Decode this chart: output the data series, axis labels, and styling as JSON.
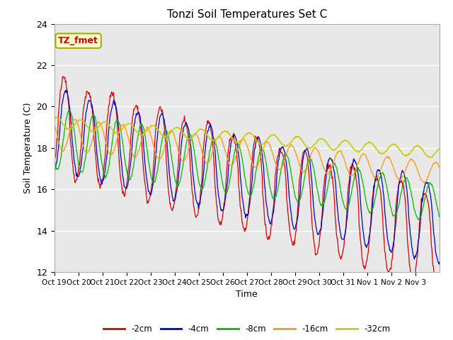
{
  "title": "Tonzi Soil Temperatures Set C",
  "xlabel": "Time",
  "ylabel": "Soil Temperature (C)",
  "ylim": [
    12,
    24
  ],
  "yticks": [
    12,
    14,
    16,
    18,
    20,
    22,
    24
  ],
  "xtick_labels": [
    "Oct 19",
    "Oct 20",
    "Oct 21",
    "Oct 22",
    "Oct 23",
    "Oct 24",
    "Oct 25",
    "Oct 26",
    "Oct 27",
    "Oct 28",
    "Oct 29",
    "Oct 30",
    "Oct 31",
    "Nov 1",
    "Nov 2",
    "Nov 3"
  ],
  "annotation_text": "TZ_fmet",
  "annotation_color": "#cc0000",
  "annotation_bg": "#ffffcc",
  "annotation_border": "#aaaa00",
  "colors": {
    "-2cm": "#dd0000",
    "-4cm": "#0000cc",
    "-8cm": "#00bb00",
    "-16cm": "#ff9900",
    "-32cm": "#cccc00"
  },
  "legend_entries": [
    "-2cm",
    "-4cm",
    "-8cm",
    "-16cm",
    "-32cm"
  ],
  "background_color": "#e8e8e8",
  "grid_color": "white",
  "title_fontsize": 11
}
